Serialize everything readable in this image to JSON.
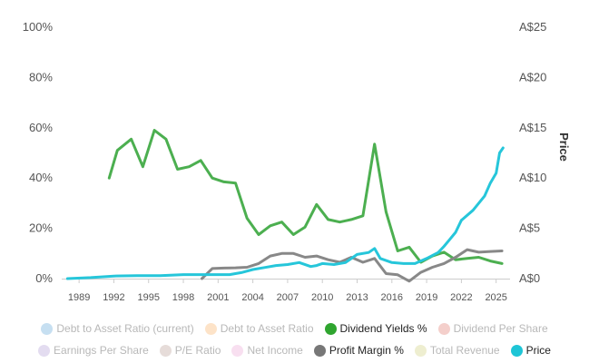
{
  "chart_data": {
    "type": "line",
    "y_left_ticks": [
      "0%",
      "20%",
      "40%",
      "60%",
      "80%",
      "100%"
    ],
    "y_right_ticks": [
      "A$0",
      "A$5",
      "A$10",
      "A$15",
      "A$20",
      "A$25"
    ],
    "y_right_label": "Price",
    "x_ticks": [
      "1989",
      "1992",
      "1995",
      "1998",
      "2001",
      "2004",
      "2007",
      "2010",
      "2013",
      "2016",
      "2019",
      "2022",
      "2025"
    ],
    "x_range": [
      1987.5,
      2026.2
    ],
    "y_left_range": [
      0,
      100
    ],
    "y_right_range": [
      0,
      25
    ],
    "series": [
      {
        "name": "Dividend Yields %",
        "axis": "left",
        "color": "#4caf50",
        "x": [
          1991.6,
          1992.3,
          1993.5,
          1994.5,
          1995.5,
          1996.5,
          1997.5,
          1998.5,
          1999.5,
          2000.5,
          2001.5,
          2002.5,
          2003.5,
          2004.5,
          2005.5,
          2006.5,
          2007.5,
          2008.5,
          2009.5,
          2010.5,
          2011.5,
          2012.5,
          2013.5,
          2014.5,
          2015.5,
          2016.5,
          2017.5,
          2018.5,
          2019.5,
          2020.5,
          2021.5,
          2022.5,
          2023.5,
          2024.5,
          2025.5
        ],
        "y": [
          40,
          51,
          55.5,
          44.5,
          59,
          55.5,
          43.5,
          44.5,
          47,
          40,
          38.5,
          38,
          24,
          17.5,
          21,
          22.5,
          17.5,
          20.5,
          29.5,
          23.5,
          22.5,
          23.5,
          25,
          53.5,
          26.5,
          11,
          12.5,
          6.5,
          9,
          10.5,
          7.5,
          8,
          8.5,
          7,
          6
        ]
      },
      {
        "name": "Profit Margin %",
        "axis": "left",
        "color": "#888888",
        "x": [
          1999.6,
          2000.5,
          2001.5,
          2002.5,
          2003.5,
          2004.5,
          2005.5,
          2006.5,
          2007.5,
          2008.5,
          2009.5,
          2010.5,
          2011.5,
          2012.5,
          2013.5,
          2014.5,
          2015.5,
          2016.5,
          2017.5,
          2018.5,
          2019.5,
          2020.5,
          2021.5,
          2022.5,
          2023.5,
          2024.5,
          2025.5
        ],
        "y": [
          0,
          4,
          4.2,
          4.3,
          4.5,
          6,
          9,
          10,
          10,
          8.5,
          9,
          7.5,
          6.5,
          8.5,
          6.5,
          8,
          2,
          1.5,
          -1,
          2.5,
          4.5,
          6,
          8.5,
          11.5,
          10.5,
          10.8,
          11
        ]
      },
      {
        "name": "Price",
        "axis": "right",
        "color": "#26c6da",
        "x": [
          1988.0,
          1990.0,
          1992.0,
          1994.0,
          1996.0,
          1998.0,
          2000.0,
          2002.0,
          2003.0,
          2004.0,
          2005.0,
          2006.0,
          2007.0,
          2008.0,
          2009.0,
          2009.5,
          2010.0,
          2011.0,
          2012.0,
          2013.0,
          2014.0,
          2014.5,
          2015.0,
          2016.0,
          2017.0,
          2018.0,
          2019.0,
          2020.0,
          2020.5,
          2021.0,
          2021.5,
          2022.0,
          2023.0,
          2024.0,
          2024.5,
          2025.0,
          2025.3,
          2025.6
        ],
        "y": [
          0,
          0.1,
          0.25,
          0.3,
          0.3,
          0.4,
          0.4,
          0.4,
          0.6,
          0.9,
          1.1,
          1.3,
          1.4,
          1.6,
          1.2,
          1.3,
          1.5,
          1.4,
          1.6,
          2.4,
          2.6,
          3.0,
          2.0,
          1.6,
          1.5,
          1.5,
          2.0,
          2.6,
          3.2,
          3.9,
          4.6,
          5.8,
          6.8,
          8.2,
          9.5,
          10.5,
          12.5,
          13.0
        ]
      }
    ],
    "legend_position": "bottom",
    "grid": false
  },
  "legend": {
    "rows": [
      [
        {
          "label": "Debt to Asset Ratio (current)",
          "color": "#c6dff1",
          "active": false
        },
        {
          "label": "Debt to Asset Ratio",
          "color": "#fde3c8",
          "active": false
        },
        {
          "label": "Dividend Yields %",
          "color": "#2fa52f",
          "active": true
        },
        {
          "label": "Dividend Per Share",
          "color": "#f4cfcb",
          "active": false
        }
      ],
      [
        {
          "label": "Earnings Per Share",
          "color": "#e3dcf0",
          "active": false
        },
        {
          "label": "P/E Ratio",
          "color": "#e6dcd9",
          "active": false
        },
        {
          "label": "Net Income",
          "color": "#f8dff0",
          "active": false
        },
        {
          "label": "Profit Margin %",
          "color": "#777777",
          "active": true
        },
        {
          "label": "Total Revenue",
          "color": "#eeeed0",
          "active": false
        },
        {
          "label": "Price",
          "color": "#1ec5d6",
          "active": true
        }
      ]
    ]
  }
}
